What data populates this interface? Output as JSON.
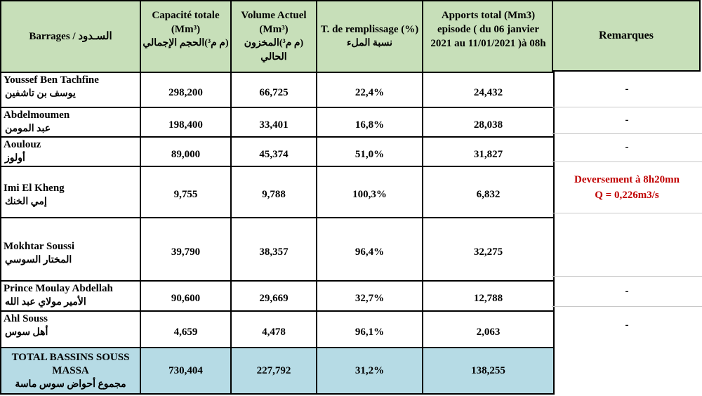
{
  "headers": {
    "barrages": "Barrages / السـدود",
    "capacite_fr": "Capacité totale (Mm³)",
    "capacite_ar": "(م م³)الحجم الإجمالي",
    "volume_fr": "Volume Actuel (Mm³)",
    "volume_ar": "(م م³)المخزون الحالي",
    "taux_fr": "T. de remplissage (%)",
    "taux_ar": "نسبة الملء",
    "apports": "Apports total (Mm3) episode ( du 06 janvier 2021 au 11/01/2021 )à 08h",
    "remarques": "Remarques"
  },
  "rows": [
    {
      "name_fr": "Youssef Ben Tachfine",
      "name_ar": "يوسف بن تاشفين",
      "capacite": "298,200",
      "volume": "66,725",
      "taux": "22,4%",
      "apports": "24,432",
      "remarque": "-"
    },
    {
      "name_fr": "Abdelmoumen",
      "name_ar": "عبد المومن",
      "capacite": "198,400",
      "volume": "33,401",
      "taux": "16,8%",
      "apports": "28,038",
      "remarque": "-"
    },
    {
      "name_fr": "Aoulouz",
      "name_ar": "أولوز",
      "capacite": "89,000",
      "volume": "45,374",
      "taux": "51,0%",
      "apports": "31,827",
      "remarque": "-"
    },
    {
      "name_fr": "Imi El Kheng",
      "name_ar": "إمي الخنك",
      "capacite": "9,755",
      "volume": "9,788",
      "taux": "100,3%",
      "apports": "6,832",
      "remarque_line1": "Deversement à 8h20mn",
      "remarque_line2": "Q = 0,226m3/s"
    },
    {
      "name_fr": "Mokhtar Soussi",
      "name_ar": "المختار السوسي",
      "capacite": "39,790",
      "volume": "38,357",
      "taux": "96,4%",
      "apports": "32,275",
      "remarque": ""
    },
    {
      "name_fr": "Prince Moulay Abdellah",
      "name_ar": "الأمير مولاي عبد الله",
      "capacite": "90,600",
      "volume": "29,669",
      "taux": "32,7%",
      "apports": "12,788",
      "remarque": "-"
    },
    {
      "name_fr": "Ahl Souss",
      "name_ar": "أهل سوس",
      "capacite": "4,659",
      "volume": "4,478",
      "taux": "96,1%",
      "apports": "2,063",
      "remarque": "-"
    }
  ],
  "total": {
    "name_fr": "TOTAL BASSINS SOUSS MASSA",
    "name_ar": "مجموع أحواض سوس ماسة",
    "capacite": "730,404",
    "volume": "227,792",
    "taux": "31,2%",
    "apports": "138,255"
  },
  "colors": {
    "header_bg": "#c7dfb9",
    "total_bg": "#b6dbe5",
    "remark_red": "#c00000"
  }
}
